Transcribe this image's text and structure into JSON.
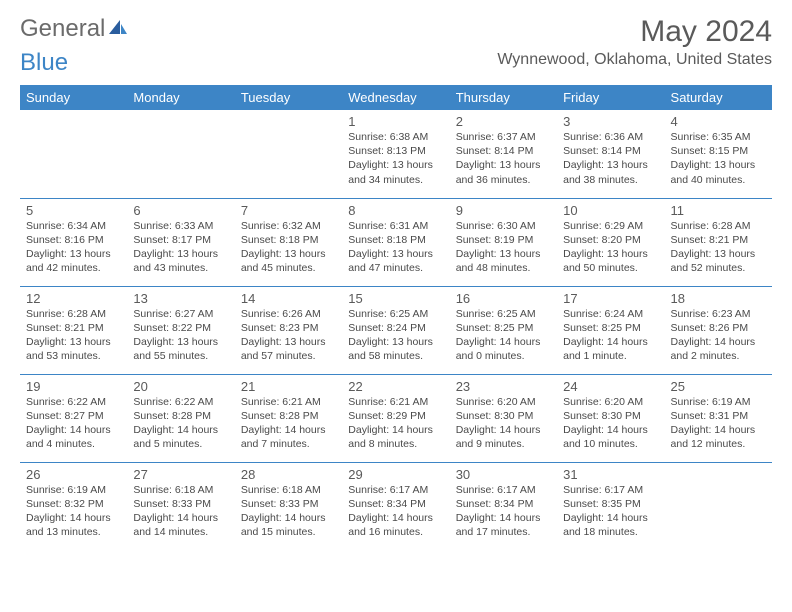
{
  "logo": {
    "part1": "General",
    "part2": "Blue"
  },
  "title": "May 2024",
  "location": "Wynnewood, Oklahoma, United States",
  "header_bg": "#3d85c6",
  "day_headers": [
    "Sunday",
    "Monday",
    "Tuesday",
    "Wednesday",
    "Thursday",
    "Friday",
    "Saturday"
  ],
  "weeks": [
    [
      null,
      null,
      null,
      {
        "n": "1",
        "sr": "6:38 AM",
        "ss": "8:13 PM",
        "dl": "13 hours and 34 minutes."
      },
      {
        "n": "2",
        "sr": "6:37 AM",
        "ss": "8:14 PM",
        "dl": "13 hours and 36 minutes."
      },
      {
        "n": "3",
        "sr": "6:36 AM",
        "ss": "8:14 PM",
        "dl": "13 hours and 38 minutes."
      },
      {
        "n": "4",
        "sr": "6:35 AM",
        "ss": "8:15 PM",
        "dl": "13 hours and 40 minutes."
      }
    ],
    [
      {
        "n": "5",
        "sr": "6:34 AM",
        "ss": "8:16 PM",
        "dl": "13 hours and 42 minutes."
      },
      {
        "n": "6",
        "sr": "6:33 AM",
        "ss": "8:17 PM",
        "dl": "13 hours and 43 minutes."
      },
      {
        "n": "7",
        "sr": "6:32 AM",
        "ss": "8:18 PM",
        "dl": "13 hours and 45 minutes."
      },
      {
        "n": "8",
        "sr": "6:31 AM",
        "ss": "8:18 PM",
        "dl": "13 hours and 47 minutes."
      },
      {
        "n": "9",
        "sr": "6:30 AM",
        "ss": "8:19 PM",
        "dl": "13 hours and 48 minutes."
      },
      {
        "n": "10",
        "sr": "6:29 AM",
        "ss": "8:20 PM",
        "dl": "13 hours and 50 minutes."
      },
      {
        "n": "11",
        "sr": "6:28 AM",
        "ss": "8:21 PM",
        "dl": "13 hours and 52 minutes."
      }
    ],
    [
      {
        "n": "12",
        "sr": "6:28 AM",
        "ss": "8:21 PM",
        "dl": "13 hours and 53 minutes."
      },
      {
        "n": "13",
        "sr": "6:27 AM",
        "ss": "8:22 PM",
        "dl": "13 hours and 55 minutes."
      },
      {
        "n": "14",
        "sr": "6:26 AM",
        "ss": "8:23 PM",
        "dl": "13 hours and 57 minutes."
      },
      {
        "n": "15",
        "sr": "6:25 AM",
        "ss": "8:24 PM",
        "dl": "13 hours and 58 minutes."
      },
      {
        "n": "16",
        "sr": "6:25 AM",
        "ss": "8:25 PM",
        "dl": "14 hours and 0 minutes."
      },
      {
        "n": "17",
        "sr": "6:24 AM",
        "ss": "8:25 PM",
        "dl": "14 hours and 1 minute."
      },
      {
        "n": "18",
        "sr": "6:23 AM",
        "ss": "8:26 PM",
        "dl": "14 hours and 2 minutes."
      }
    ],
    [
      {
        "n": "19",
        "sr": "6:22 AM",
        "ss": "8:27 PM",
        "dl": "14 hours and 4 minutes."
      },
      {
        "n": "20",
        "sr": "6:22 AM",
        "ss": "8:28 PM",
        "dl": "14 hours and 5 minutes."
      },
      {
        "n": "21",
        "sr": "6:21 AM",
        "ss": "8:28 PM",
        "dl": "14 hours and 7 minutes."
      },
      {
        "n": "22",
        "sr": "6:21 AM",
        "ss": "8:29 PM",
        "dl": "14 hours and 8 minutes."
      },
      {
        "n": "23",
        "sr": "6:20 AM",
        "ss": "8:30 PM",
        "dl": "14 hours and 9 minutes."
      },
      {
        "n": "24",
        "sr": "6:20 AM",
        "ss": "8:30 PM",
        "dl": "14 hours and 10 minutes."
      },
      {
        "n": "25",
        "sr": "6:19 AM",
        "ss": "8:31 PM",
        "dl": "14 hours and 12 minutes."
      }
    ],
    [
      {
        "n": "26",
        "sr": "6:19 AM",
        "ss": "8:32 PM",
        "dl": "14 hours and 13 minutes."
      },
      {
        "n": "27",
        "sr": "6:18 AM",
        "ss": "8:33 PM",
        "dl": "14 hours and 14 minutes."
      },
      {
        "n": "28",
        "sr": "6:18 AM",
        "ss": "8:33 PM",
        "dl": "14 hours and 15 minutes."
      },
      {
        "n": "29",
        "sr": "6:17 AM",
        "ss": "8:34 PM",
        "dl": "14 hours and 16 minutes."
      },
      {
        "n": "30",
        "sr": "6:17 AM",
        "ss": "8:34 PM",
        "dl": "14 hours and 17 minutes."
      },
      {
        "n": "31",
        "sr": "6:17 AM",
        "ss": "8:35 PM",
        "dl": "14 hours and 18 minutes."
      },
      null
    ]
  ]
}
